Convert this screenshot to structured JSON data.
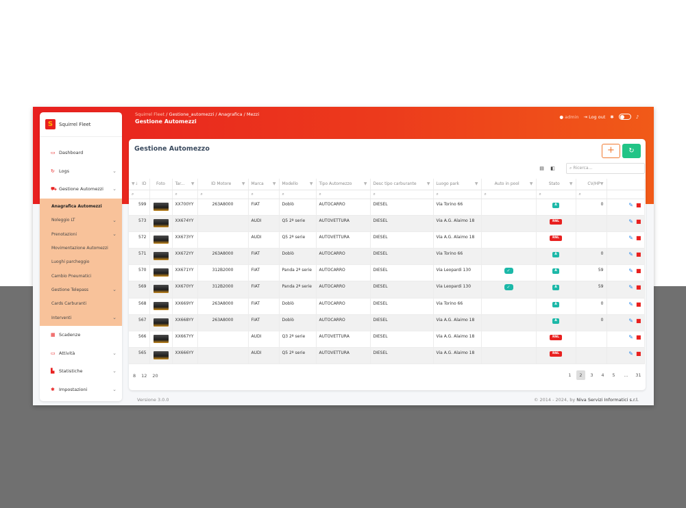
{
  "app": {
    "brand_name": "Squirrel Fleet",
    "brand_logo_glyph": "S"
  },
  "sidebar": {
    "items_top": [
      {
        "label": "Dashboard",
        "icon": "dashboard-icon",
        "glyph": "▭",
        "chevron": false
      },
      {
        "label": "Logs",
        "icon": "logs-icon",
        "glyph": "↻",
        "chevron": true
      },
      {
        "label": "Gestione Automezzi",
        "icon": "car-icon",
        "glyph": "⛟",
        "chevron": true
      }
    ],
    "submenu": [
      {
        "label": "Anagrafica Automezzi",
        "active": true,
        "chevron": false
      },
      {
        "label": "Noleggio LT",
        "active": false,
        "chevron": true
      },
      {
        "label": "Prenotazioni",
        "active": false,
        "chevron": true
      },
      {
        "label": "Movimentazione Automezzi",
        "active": false,
        "chevron": false
      },
      {
        "label": "Luoghi parcheggio",
        "active": false,
        "chevron": false
      },
      {
        "label": "Cambio Pneumatici",
        "active": false,
        "chevron": false
      },
      {
        "label": "Gestione Telepass",
        "active": false,
        "chevron": true
      },
      {
        "label": "Cards Carburanti",
        "active": false,
        "chevron": false
      },
      {
        "label": "Interventi",
        "active": false,
        "chevron": true
      }
    ],
    "items_bottom": [
      {
        "label": "Scadenze",
        "icon": "calendar-icon",
        "glyph": "▦",
        "chevron": false
      },
      {
        "label": "Attività",
        "icon": "monitor-icon",
        "glyph": "▭",
        "chevron": true
      },
      {
        "label": "Statistiche",
        "icon": "chart-icon",
        "glyph": "▙",
        "chevron": true
      },
      {
        "label": "Impostazioni",
        "icon": "gear-icon",
        "glyph": "✱",
        "chevron": true
      }
    ]
  },
  "header": {
    "breadcrumb_root": "Squirrel Fleet",
    "breadcrumb_path": " / Gestione_automezzi / Anagrafica / Mezzi",
    "title": "Gestione Automezzi",
    "user_name": "admin",
    "logout_label": "Log out"
  },
  "card": {
    "title": "Gestione Automezzo",
    "add_label": "+",
    "refresh_label": "↻",
    "search_placeholder": "Ricerca..."
  },
  "table": {
    "columns": [
      {
        "label": "ID",
        "width": 30,
        "sort": "▼↓",
        "filter": false,
        "align": "right"
      },
      {
        "label": "Foto",
        "width": 33,
        "filter": false,
        "align": "center"
      },
      {
        "label": "Tar...",
        "width": 37,
        "filter": true
      },
      {
        "label": "ID Motore",
        "width": 74,
        "filter": true,
        "align": "center"
      },
      {
        "label": "Marca",
        "width": 45,
        "filter": true
      },
      {
        "label": "Modello",
        "width": 54,
        "filter": true
      },
      {
        "label": "Tipo Automezzo",
        "width": 79,
        "filter": true
      },
      {
        "label": "Desc tipo carburante",
        "width": 92,
        "filter": true
      },
      {
        "label": "Luogo park",
        "width": 70,
        "filter": true
      },
      {
        "label": "Auto in pool",
        "width": 80,
        "filter": true,
        "align": "center"
      },
      {
        "label": "Stato",
        "width": 58,
        "filter": true,
        "align": "center"
      },
      {
        "label": "CV/HP",
        "width": 45,
        "filter": true,
        "align": "right"
      },
      {
        "label": "",
        "width": 55,
        "filter": false
      }
    ],
    "filter_glyph": "🔍",
    "rows": [
      {
        "id": "599",
        "targa": "XX700YY",
        "motore": "263A8000",
        "marca": "FIAT",
        "modello": "Doblò",
        "tipo": "AUTOCARRO",
        "carb": "DIESEL",
        "park": "Via Torino 66",
        "pool": false,
        "stato": "A",
        "cv": "0"
      },
      {
        "id": "573",
        "targa": "XX674YY",
        "motore": "",
        "marca": "AUDI",
        "modello": "Q5 2ª serie",
        "tipo": "AUTOVETTURA",
        "carb": "DIESEL",
        "park": "Via A.G. Alaimo 18",
        "pool": false,
        "stato": "RNL",
        "cv": ""
      },
      {
        "id": "572",
        "targa": "XX673YY",
        "motore": "",
        "marca": "AUDI",
        "modello": "Q5 2ª serie",
        "tipo": "AUTOVETTURA",
        "carb": "DIESEL",
        "park": "Via A.G. Alaimo 18",
        "pool": false,
        "stato": "RNL",
        "cv": ""
      },
      {
        "id": "571",
        "targa": "XX672YY",
        "motore": "263A8000",
        "marca": "FIAT",
        "modello": "Doblò",
        "tipo": "AUTOCARRO",
        "carb": "DIESEL",
        "park": "Via Torino 66",
        "pool": false,
        "stato": "A",
        "cv": "0"
      },
      {
        "id": "570",
        "targa": "XX671YY",
        "motore": "312B2000",
        "marca": "FIAT",
        "modello": "Panda 2ª serie",
        "tipo": "AUTOCARRO",
        "carb": "DIESEL",
        "park": "Via Leopardi 130",
        "pool": true,
        "stato": "A",
        "cv": "59"
      },
      {
        "id": "569",
        "targa": "XX670YY",
        "motore": "312B2000",
        "marca": "FIAT",
        "modello": "Panda 2ª serie",
        "tipo": "AUTOCARRO",
        "carb": "DIESEL",
        "park": "Via Leopardi 130",
        "pool": true,
        "stato": "A",
        "cv": "59"
      },
      {
        "id": "568",
        "targa": "XX669YY",
        "motore": "263A8000",
        "marca": "FIAT",
        "modello": "Doblò",
        "tipo": "AUTOCARRO",
        "carb": "DIESEL",
        "park": "Via Torino 66",
        "pool": false,
        "stato": "A",
        "cv": "0"
      },
      {
        "id": "567",
        "targa": "XX668YY",
        "motore": "263A8000",
        "marca": "FIAT",
        "modello": "Doblò",
        "tipo": "AUTOCARRO",
        "carb": "DIESEL",
        "park": "Via A.G. Alaimo 18",
        "pool": false,
        "stato": "A",
        "cv": "0"
      },
      {
        "id": "566",
        "targa": "XX667YY",
        "motore": "",
        "marca": "AUDI",
        "modello": "Q3 2ª serie",
        "tipo": "AUTOVETTURA",
        "carb": "DIESEL",
        "park": "Via A.G. Alaimo 18",
        "pool": false,
        "stato": "RNL",
        "cv": ""
      },
      {
        "id": "565",
        "targa": "XX666YY",
        "motore": "",
        "marca": "AUDI",
        "modello": "Q5 2ª serie",
        "tipo": "AUTOVETTURA",
        "carb": "DIESEL",
        "park": "Via A.G. Alaimo 18",
        "pool": false,
        "stato": "RNL",
        "cv": ""
      }
    ]
  },
  "pager": {
    "sizes": [
      "8",
      "12",
      "20"
    ],
    "pages": [
      "1",
      "2",
      "3",
      "4",
      "5",
      "...",
      "31"
    ],
    "active_page": "2"
  },
  "footer": {
    "version": "Versione 3.0.0",
    "copyright": "© 2014 - 2024, by ",
    "company": "Niva Servizi Informatici s.r.l."
  },
  "colors": {
    "header_red": "#e8201f",
    "header_orange": "#f15a18",
    "submenu_bg": "#f8c29a",
    "badge_active": "#1cb8a8",
    "badge_rnl": "#e8201f",
    "refresh_green": "#21c486"
  }
}
